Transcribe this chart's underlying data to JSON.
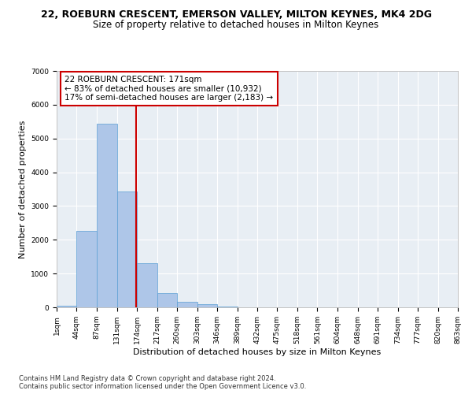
{
  "title": "22, ROEBURN CRESCENT, EMERSON VALLEY, MILTON KEYNES, MK4 2DG",
  "subtitle": "Size of property relative to detached houses in Milton Keynes",
  "xlabel": "Distribution of detached houses by size in Milton Keynes",
  "ylabel": "Number of detached properties",
  "footnote1": "Contains HM Land Registry data © Crown copyright and database right 2024.",
  "footnote2": "Contains public sector information licensed under the Open Government Licence v3.0.",
  "annotation_line1": "22 ROEBURN CRESCENT: 171sqm",
  "annotation_line2": "← 83% of detached houses are smaller (10,932)",
  "annotation_line3": "17% of semi-detached houses are larger (2,183) →",
  "bar_color": "#aec6e8",
  "bar_edge_color": "#5a9fd4",
  "vline_color": "#cc0000",
  "annotation_box_edge_color": "#cc0000",
  "background_color": "#e8eef4",
  "bin_edges": [
    1,
    44,
    87,
    131,
    174,
    217,
    260,
    303,
    346,
    389,
    432,
    475,
    518,
    561,
    604,
    648,
    691,
    734,
    777,
    820,
    863
  ],
  "bar_heights": [
    50,
    2270,
    5430,
    3430,
    1300,
    420,
    170,
    90,
    20,
    0,
    0,
    0,
    0,
    0,
    0,
    0,
    0,
    0,
    0,
    0
  ],
  "property_size": 171,
  "ylim": [
    0,
    7000
  ],
  "yticks": [
    0,
    1000,
    2000,
    3000,
    4000,
    5000,
    6000,
    7000
  ],
  "title_fontsize": 9,
  "subtitle_fontsize": 8.5,
  "axis_label_fontsize": 8,
  "tick_fontsize": 6.5,
  "annotation_fontsize": 7.5,
  "footnote_fontsize": 6
}
